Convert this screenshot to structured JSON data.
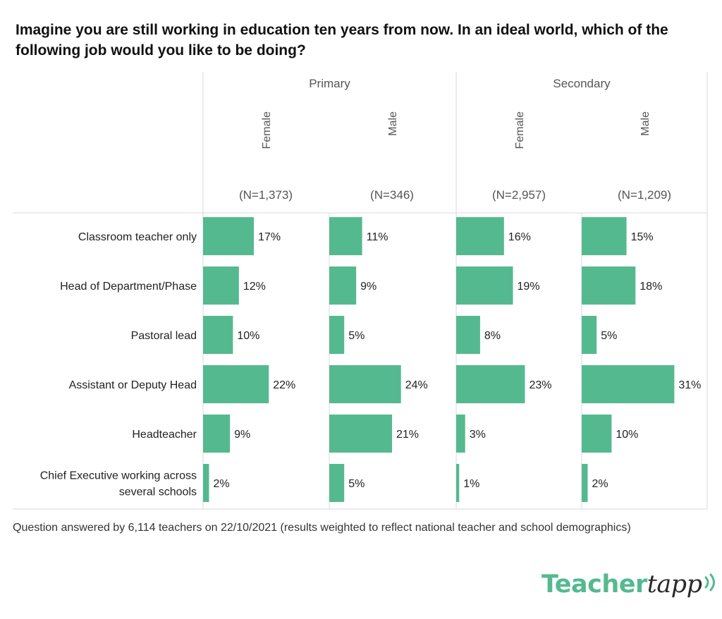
{
  "title": "Imagine you are still working in education ten years from now. In an ideal world, which of the following job would you like to be doing?",
  "footnote": "Question answered by 6,114 teachers on 22/10/2021 (results weighted to reflect national teacher and school demographics)",
  "logo": {
    "word1": "Teacher",
    "word2": "tapp",
    "icon": "signal-waves-icon"
  },
  "colors": {
    "bar": "#55b990",
    "grid": "#d9d9d9",
    "text": "#222222",
    "header": "#555555"
  },
  "chart_data": {
    "type": "bar",
    "orientation": "horizontal",
    "categories": [
      "Classroom teacher only",
      "Head of Department/Phase",
      "Pastoral lead",
      "Assistant or Deputy Head",
      "Headteacher",
      "Chief Executive working across several schools"
    ],
    "groups": [
      {
        "name": "Primary",
        "series": [
          {
            "name": "Female",
            "n": "(N=1,373)",
            "values": [
              17,
              12,
              10,
              22,
              9,
              2
            ]
          },
          {
            "name": "Male",
            "n": "(N=346)",
            "values": [
              11,
              9,
              5,
              24,
              21,
              5
            ]
          }
        ]
      },
      {
        "name": "Secondary",
        "series": [
          {
            "name": "Female",
            "n": "(N=2,957)",
            "values": [
              16,
              19,
              8,
              23,
              3,
              1
            ]
          },
          {
            "name": "Male",
            "n": "(N=1,209)",
            "values": [
              15,
              18,
              5,
              31,
              10,
              2
            ]
          }
        ]
      }
    ],
    "unit": "%",
    "xlim": [
      0,
      42
    ],
    "grid": true,
    "legend": "none"
  }
}
